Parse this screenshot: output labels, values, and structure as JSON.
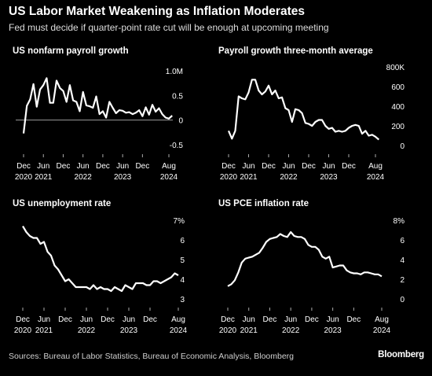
{
  "header": {
    "title": "US Labor Market Weakening as Inflation Moderates",
    "subtitle": "Fed must decide if quarter-point rate cut will be enough at upcoming meeting"
  },
  "footer": {
    "source": "Sources: Bureau of Labor Statistics, Bureau of Economic Analysis, Bloomberg",
    "brand": "Bloomberg"
  },
  "colors": {
    "background": "#000000",
    "line": "#ffffff",
    "zero_line": "#9a9a9a"
  },
  "chart_data": [
    {
      "id": "payrolls",
      "type": "line",
      "title": "US nonfarm payroll growth",
      "x_start": "2020-12",
      "x_step": "month",
      "x_ticks": [
        {
          "i": 0,
          "top": "Dec",
          "bottom": "2020"
        },
        {
          "i": 6,
          "top": "Jun",
          "bottom": "2021"
        },
        {
          "i": 12,
          "top": "Dec",
          "bottom": ""
        },
        {
          "i": 18,
          "top": "Jun",
          "bottom": "2022"
        },
        {
          "i": 24,
          "top": "Dec",
          "bottom": ""
        },
        {
          "i": 30,
          "top": "Jun",
          "bottom": "2023"
        },
        {
          "i": 36,
          "top": "Dec",
          "bottom": ""
        },
        {
          "i": 44,
          "top": "Aug",
          "bottom": "2024"
        }
      ],
      "ylim": [
        -0.5,
        1.0
      ],
      "y_ticks": [
        {
          "v": 1.0,
          "label": "1.0M"
        },
        {
          "v": 0.5,
          "label": "0.5"
        },
        {
          "v": 0,
          "label": "0"
        },
        {
          "v": -0.5,
          "label": "-0.5"
        }
      ],
      "zero_line": true,
      "series": [
        {
          "values": [
            -0.27,
            0.29,
            0.42,
            0.73,
            0.27,
            0.62,
            0.71,
            0.85,
            0.35,
            0.35,
            0.8,
            0.65,
            0.59,
            0.37,
            0.71,
            0.4,
            0.37,
            0.18,
            0.57,
            0.3,
            0.28,
            0.25,
            0.48,
            0.12,
            0.18,
            0.05,
            0.37,
            0.25,
            0.14,
            0.2,
            0.19,
            0.15,
            0.16,
            0.12,
            0.15,
            0.2,
            0.08,
            0.26,
            0.11,
            0.31,
            0.17,
            0.24,
            0.12,
            0.05,
            0.03,
            0.09
          ]
        }
      ]
    },
    {
      "id": "payroll3m",
      "type": "line",
      "title": "Payroll growth three-month average",
      "x_start": "2020-12",
      "x_step": "month",
      "x_ticks": [
        {
          "i": 0,
          "top": "Dec",
          "bottom": "2020"
        },
        {
          "i": 6,
          "top": "Jun",
          "bottom": "2021"
        },
        {
          "i": 12,
          "top": "Dec",
          "bottom": ""
        },
        {
          "i": 18,
          "top": "Jun",
          "bottom": "2022"
        },
        {
          "i": 24,
          "top": "Dec",
          "bottom": ""
        },
        {
          "i": 30,
          "top": "Jun",
          "bottom": "2023"
        },
        {
          "i": 36,
          "top": "Dec",
          "bottom": ""
        },
        {
          "i": 44,
          "top": "Aug",
          "bottom": "2024"
        }
      ],
      "ylim": [
        0,
        800
      ],
      "y_ticks": [
        {
          "v": 800,
          "label": "800K"
        },
        {
          "v": 600,
          "label": "600"
        },
        {
          "v": 400,
          "label": "400"
        },
        {
          "v": 200,
          "label": "200"
        },
        {
          "v": 0,
          "label": "0"
        }
      ],
      "series": [
        {
          "values": [
            150,
            70,
            150,
            500,
            480,
            470,
            540,
            670,
            670,
            560,
            520,
            550,
            610,
            520,
            560,
            480,
            490,
            380,
            360,
            240,
            370,
            360,
            330,
            230,
            220,
            200,
            240,
            260,
            260,
            200,
            170,
            180,
            140,
            150,
            140,
            150,
            180,
            200,
            210,
            200,
            120,
            150,
            100,
            110,
            90,
            60
          ]
        }
      ]
    },
    {
      "id": "unemployment",
      "type": "line",
      "title": "US unemployment rate",
      "x_start": "2020-12",
      "x_step": "month",
      "x_ticks": [
        {
          "i": 0,
          "top": "Dec",
          "bottom": "2020"
        },
        {
          "i": 6,
          "top": "Jun",
          "bottom": "2021"
        },
        {
          "i": 12,
          "top": "Dec",
          "bottom": ""
        },
        {
          "i": 18,
          "top": "Jun",
          "bottom": "2022"
        },
        {
          "i": 24,
          "top": "Dec",
          "bottom": ""
        },
        {
          "i": 30,
          "top": "Jun",
          "bottom": "2023"
        },
        {
          "i": 36,
          "top": "Dec",
          "bottom": ""
        },
        {
          "i": 44,
          "top": "Aug",
          "bottom": "2024"
        }
      ],
      "ylim": [
        3,
        7
      ],
      "y_ticks": [
        {
          "v": 7,
          "label": "7%"
        },
        {
          "v": 6,
          "label": "6"
        },
        {
          "v": 5,
          "label": "5"
        },
        {
          "v": 4,
          "label": "4"
        },
        {
          "v": 3,
          "label": "3"
        }
      ],
      "series": [
        {
          "values": [
            6.7,
            6.4,
            6.2,
            6.1,
            6.1,
            5.8,
            5.9,
            5.4,
            5.2,
            4.7,
            4.5,
            4.2,
            3.9,
            4.0,
            3.8,
            3.6,
            3.6,
            3.6,
            3.6,
            3.5,
            3.7,
            3.5,
            3.6,
            3.5,
            3.5,
            3.4,
            3.6,
            3.5,
            3.4,
            3.7,
            3.6,
            3.5,
            3.8,
            3.8,
            3.8,
            3.7,
            3.7,
            3.9,
            3.9,
            3.8,
            3.9,
            4.0,
            4.1,
            4.3,
            4.2
          ]
        }
      ]
    },
    {
      "id": "pce",
      "type": "line",
      "title": "US PCE inflation rate",
      "x_start": "2020-12",
      "x_step": "month",
      "x_ticks": [
        {
          "i": 0,
          "top": "Dec",
          "bottom": "2020"
        },
        {
          "i": 6,
          "top": "Jun",
          "bottom": "2021"
        },
        {
          "i": 12,
          "top": "Dec",
          "bottom": ""
        },
        {
          "i": 18,
          "top": "Jun",
          "bottom": "2022"
        },
        {
          "i": 24,
          "top": "Dec",
          "bottom": ""
        },
        {
          "i": 30,
          "top": "Jun",
          "bottom": "2023"
        },
        {
          "i": 36,
          "top": "Dec",
          "bottom": ""
        },
        {
          "i": 44,
          "top": "Aug",
          "bottom": "2024"
        }
      ],
      "ylim": [
        0,
        8
      ],
      "y_ticks": [
        {
          "v": 8,
          "label": "8%"
        },
        {
          "v": 6,
          "label": "6"
        },
        {
          "v": 4,
          "label": "4"
        },
        {
          "v": 2,
          "label": "2"
        },
        {
          "v": 0,
          "label": "0"
        }
      ],
      "series": [
        {
          "values": [
            1.3,
            1.5,
            1.9,
            2.7,
            3.7,
            4.1,
            4.2,
            4.3,
            4.5,
            4.7,
            5.2,
            5.8,
            6.1,
            6.2,
            6.3,
            6.6,
            6.4,
            6.3,
            6.8,
            6.4,
            6.3,
            6.3,
            6.1,
            5.5,
            5.3,
            5.3,
            5.0,
            4.3,
            4.1,
            4.3,
            3.2,
            3.3,
            3.4,
            3.4,
            2.9,
            2.7,
            2.6,
            2.6,
            2.5,
            2.7,
            2.7,
            2.6,
            2.5,
            2.5,
            2.3
          ]
        }
      ]
    }
  ]
}
